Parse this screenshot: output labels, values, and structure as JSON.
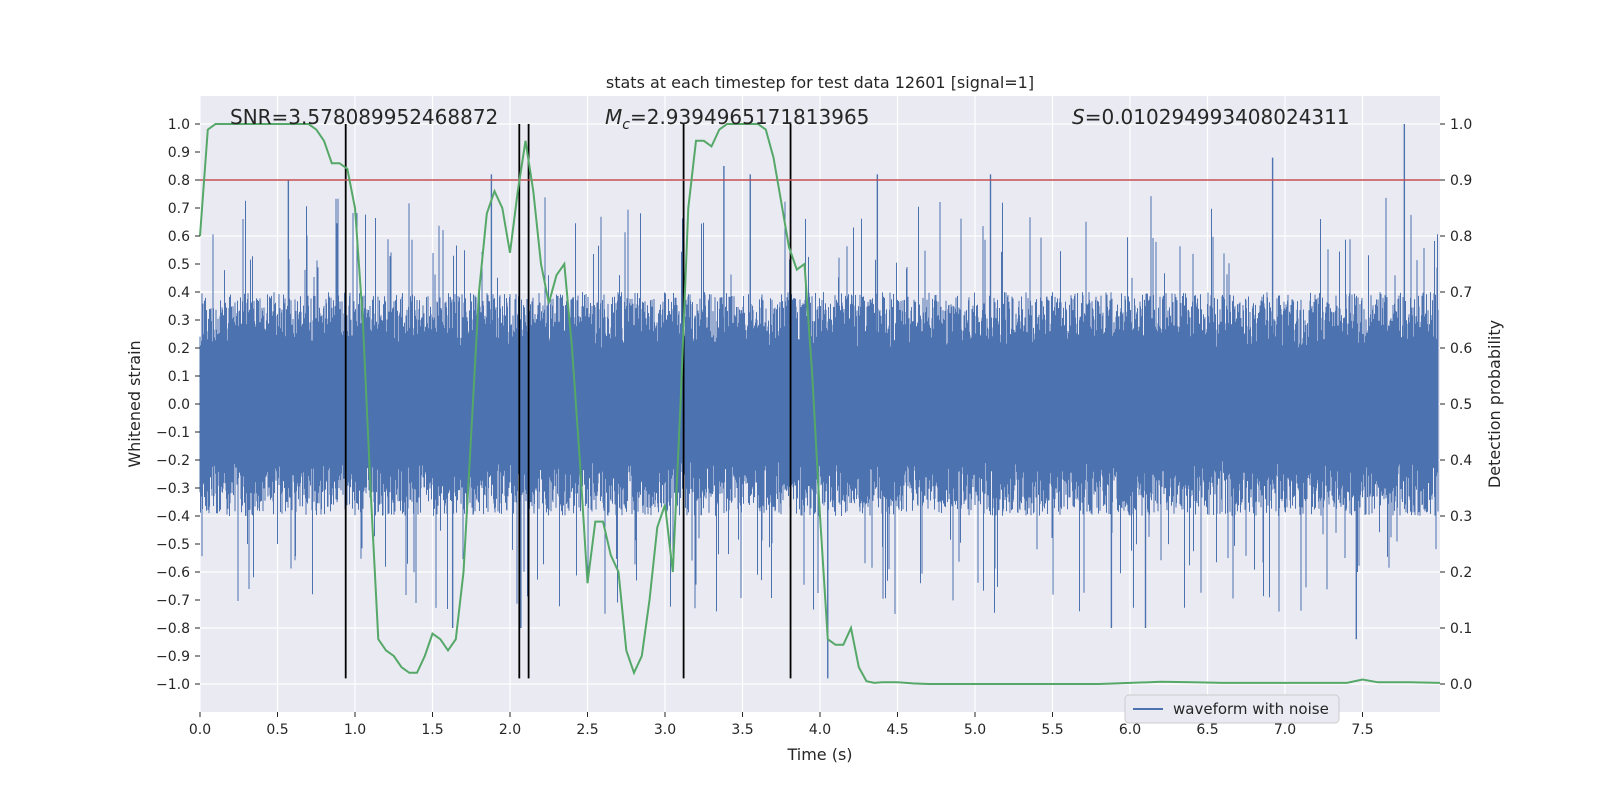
{
  "chart_data": {
    "type": "line",
    "title": "stats at each timestep for test data 12601 [signal=1]",
    "xlabel": "Time (s)",
    "ylabel": "Whitened strain",
    "y2label": "Detection probability",
    "xlim": [
      0.0,
      8.0
    ],
    "ylim": [
      -1.1,
      1.1
    ],
    "y2lim": [
      -0.05,
      1.05
    ],
    "xticks": [
      0.0,
      0.5,
      1.0,
      1.5,
      2.0,
      2.5,
      3.0,
      3.5,
      4.0,
      4.5,
      5.0,
      5.5,
      6.0,
      6.5,
      7.0,
      7.5
    ],
    "xtick_labels": [
      "0.0",
      "0.5",
      "1.0",
      "1.5",
      "2.0",
      "2.5",
      "3.0",
      "3.5",
      "4.0",
      "4.5",
      "5.0",
      "5.5",
      "6.0",
      "6.5",
      "7.0",
      "7.5"
    ],
    "yticks": [
      1.0,
      0.9,
      0.8,
      0.7,
      0.6,
      0.5,
      0.4,
      0.3,
      0.2,
      0.1,
      0.0,
      -0.1,
      -0.2,
      -0.3,
      -0.4,
      -0.5,
      -0.6,
      -0.7,
      -0.8,
      -0.9,
      -1.0
    ],
    "ytick_labels": [
      "1.0",
      "0.9",
      "0.8",
      "0.7",
      "0.6",
      "0.5",
      "0.4",
      "0.3",
      "0.2",
      "0.1",
      "0.0",
      "−0.1",
      "−0.2",
      "−0.3",
      "−0.4",
      "−0.5",
      "−0.6",
      "−0.7",
      "−0.8",
      "−0.9",
      "−1.0"
    ],
    "y2ticks": [
      1.0,
      0.9,
      0.8,
      0.7,
      0.6,
      0.5,
      0.4,
      0.3,
      0.2,
      0.1,
      0.0
    ],
    "y2tick_labels": [
      "1.0",
      "0.9",
      "0.8",
      "0.7",
      "0.6",
      "0.5",
      "0.4",
      "0.3",
      "0.2",
      "0.1",
      "0.0"
    ],
    "annotations": {
      "snr": "SNR=3.578089952468872",
      "mc_symbol": "M",
      "mc_sub": "c",
      "mc_value": "=2.9394965171813965",
      "s_symbol": "S",
      "s_value": "=0.010294993408024311"
    },
    "threshold": {
      "value": 0.9,
      "axis": "y2",
      "color": "#c44e52"
    },
    "event_markers": {
      "x": [
        0.94,
        2.06,
        2.12,
        3.12,
        3.81
      ],
      "y_range": [
        -0.98,
        1.0
      ],
      "color": "#000000"
    },
    "legend": {
      "label": "waveform with noise",
      "position": "lower-right",
      "color": "#4c72b0"
    },
    "series": [
      {
        "name": "waveform with noise",
        "axis": "y",
        "color": "#4c72b0",
        "sample_rate": 2048,
        "duration": 7.99,
        "envelope": "noise ~ +/-0.2 to 0.4 with spikes up to +/-1.0",
        "peaks": [
          [
            0.57,
            0.8
          ],
          [
            0.94,
            0.85
          ],
          [
            1.88,
            0.82
          ],
          [
            2.12,
            0.84
          ],
          [
            3.38,
            0.85
          ],
          [
            3.55,
            0.82
          ],
          [
            4.05,
            -0.98
          ],
          [
            4.37,
            0.82
          ],
          [
            5.1,
            0.82
          ],
          [
            6.92,
            0.88
          ],
          [
            7.77,
            1.0
          ],
          [
            1.63,
            -0.8
          ],
          [
            2.07,
            -0.8
          ],
          [
            5.88,
            -0.8
          ],
          [
            6.1,
            -0.8
          ],
          [
            7.46,
            -0.84
          ]
        ]
      },
      {
        "name": "detection probability",
        "axis": "y2",
        "color": "#55a868",
        "x": [
          0.0,
          0.05,
          0.1,
          0.15,
          0.2,
          0.25,
          0.3,
          0.35,
          0.4,
          0.45,
          0.5,
          0.55,
          0.6,
          0.65,
          0.7,
          0.75,
          0.8,
          0.85,
          0.9,
          0.95,
          1.0,
          1.05,
          1.1,
          1.15,
          1.2,
          1.25,
          1.3,
          1.35,
          1.4,
          1.45,
          1.5,
          1.55,
          1.6,
          1.65,
          1.7,
          1.75,
          1.8,
          1.85,
          1.9,
          1.95,
          2.0,
          2.05,
          2.1,
          2.15,
          2.2,
          2.25,
          2.3,
          2.35,
          2.4,
          2.45,
          2.5,
          2.55,
          2.6,
          2.65,
          2.7,
          2.75,
          2.8,
          2.85,
          2.9,
          2.95,
          3.0,
          3.05,
          3.1,
          3.15,
          3.2,
          3.25,
          3.3,
          3.35,
          3.4,
          3.45,
          3.5,
          3.55,
          3.6,
          3.65,
          3.7,
          3.75,
          3.8,
          3.85,
          3.9,
          3.95,
          4.0,
          4.05,
          4.1,
          4.15,
          4.2,
          4.25,
          4.3,
          4.35,
          4.4,
          4.45,
          4.5,
          4.6,
          4.7,
          4.8,
          4.9,
          5.0,
          5.2,
          5.4,
          5.6,
          5.8,
          6.0,
          6.2,
          6.4,
          6.6,
          6.7,
          6.8,
          7.0,
          7.2,
          7.4,
          7.5,
          7.6,
          7.8,
          8.0
        ],
        "y": [
          0.8,
          0.99,
          1.0,
          1.0,
          1.0,
          1.0,
          1.0,
          1.0,
          1.0,
          1.0,
          1.0,
          1.0,
          1.0,
          1.0,
          1.0,
          0.99,
          0.97,
          0.93,
          0.93,
          0.92,
          0.85,
          0.65,
          0.35,
          0.08,
          0.06,
          0.05,
          0.03,
          0.02,
          0.02,
          0.05,
          0.09,
          0.08,
          0.06,
          0.08,
          0.2,
          0.45,
          0.7,
          0.84,
          0.88,
          0.85,
          0.77,
          0.88,
          0.97,
          0.88,
          0.75,
          0.68,
          0.73,
          0.75,
          0.6,
          0.4,
          0.18,
          0.29,
          0.29,
          0.23,
          0.2,
          0.06,
          0.02,
          0.05,
          0.15,
          0.28,
          0.32,
          0.2,
          0.5,
          0.85,
          0.97,
          0.97,
          0.96,
          0.99,
          1.0,
          1.0,
          1.0,
          1.0,
          1.0,
          0.99,
          0.94,
          0.86,
          0.78,
          0.74,
          0.75,
          0.55,
          0.3,
          0.08,
          0.07,
          0.07,
          0.1,
          0.03,
          0.005,
          0.002,
          0.003,
          0.003,
          0.003,
          0.001,
          0.0,
          0.0,
          0.0,
          0.0,
          0.0,
          0.0,
          0.0,
          0.0,
          0.002,
          0.004,
          0.003,
          0.002,
          0.002,
          0.002,
          0.002,
          0.002,
          0.002,
          0.008,
          0.003,
          0.003,
          0.002
        ]
      }
    ]
  }
}
